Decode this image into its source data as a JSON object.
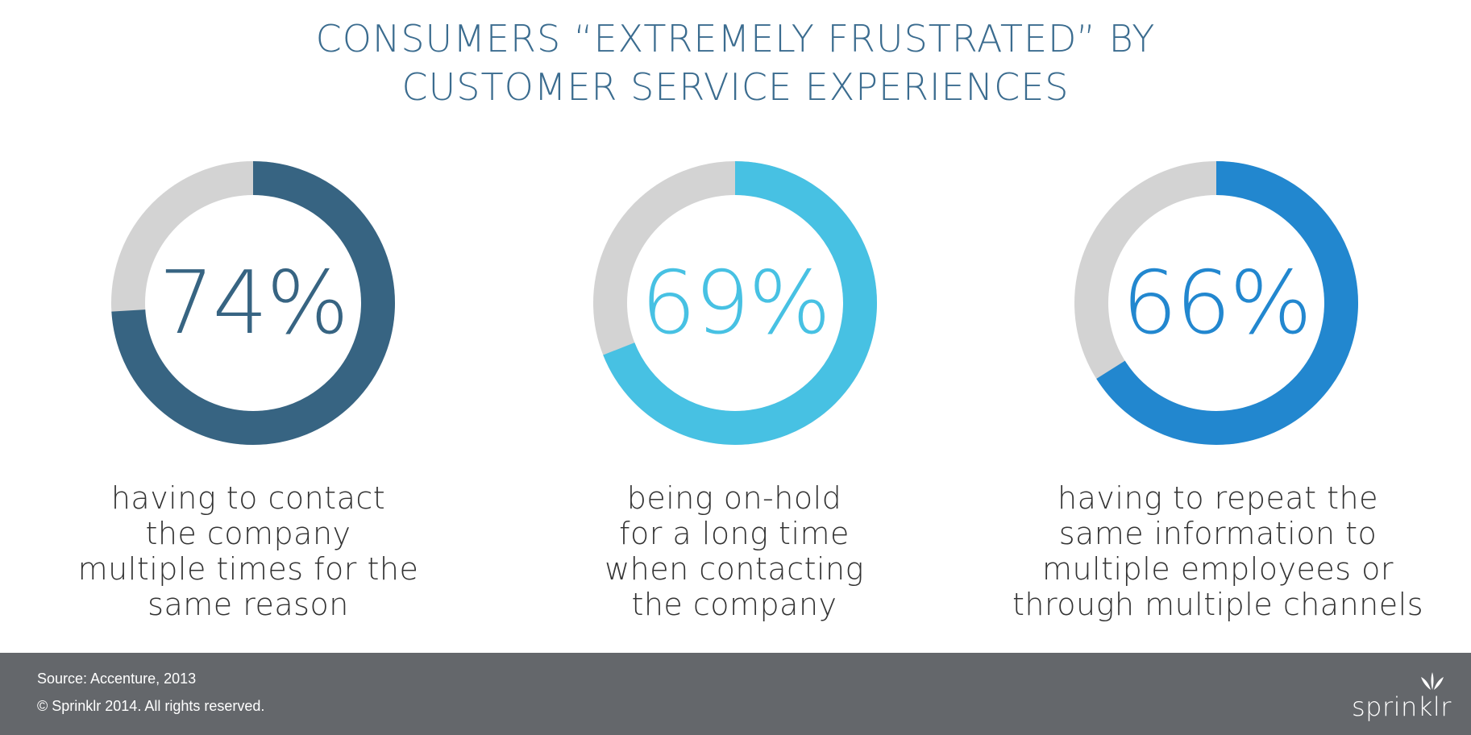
{
  "title": {
    "line1": "CONSUMERS “EXTREMELY FRUSTRATED” BY",
    "line2": "CUSTOMER SERVICE EXPERIENCES"
  },
  "colors": {
    "title": "#3b6c8f",
    "remainder": "#d3d3d3",
    "footer_bg": "#64676b"
  },
  "chart_data": [
    {
      "type": "pie",
      "variant": "donut",
      "value": 74,
      "label": "74%",
      "color": "#376482",
      "description": [
        "having to contact",
        "the company",
        "multiple times for the",
        "same reason"
      ]
    },
    {
      "type": "pie",
      "variant": "donut",
      "value": 69,
      "label": "69%",
      "color": "#47c1e3",
      "description": [
        "being on-hold",
        "for a long time",
        "when contacting",
        "the company"
      ]
    },
    {
      "type": "pie",
      "variant": "donut",
      "value": 66,
      "label": "66%",
      "color": "#2287cf",
      "description": [
        "having to repeat the",
        "same information to",
        "multiple employees or",
        "through multiple channels"
      ]
    }
  ],
  "footer": {
    "source": "Source: Accenture, 2013",
    "copyright": "© Sprinklr 2014. All rights reserved.",
    "logo_text": "sprinklr",
    "logo_icon": "sprinklr-logo-icon"
  }
}
